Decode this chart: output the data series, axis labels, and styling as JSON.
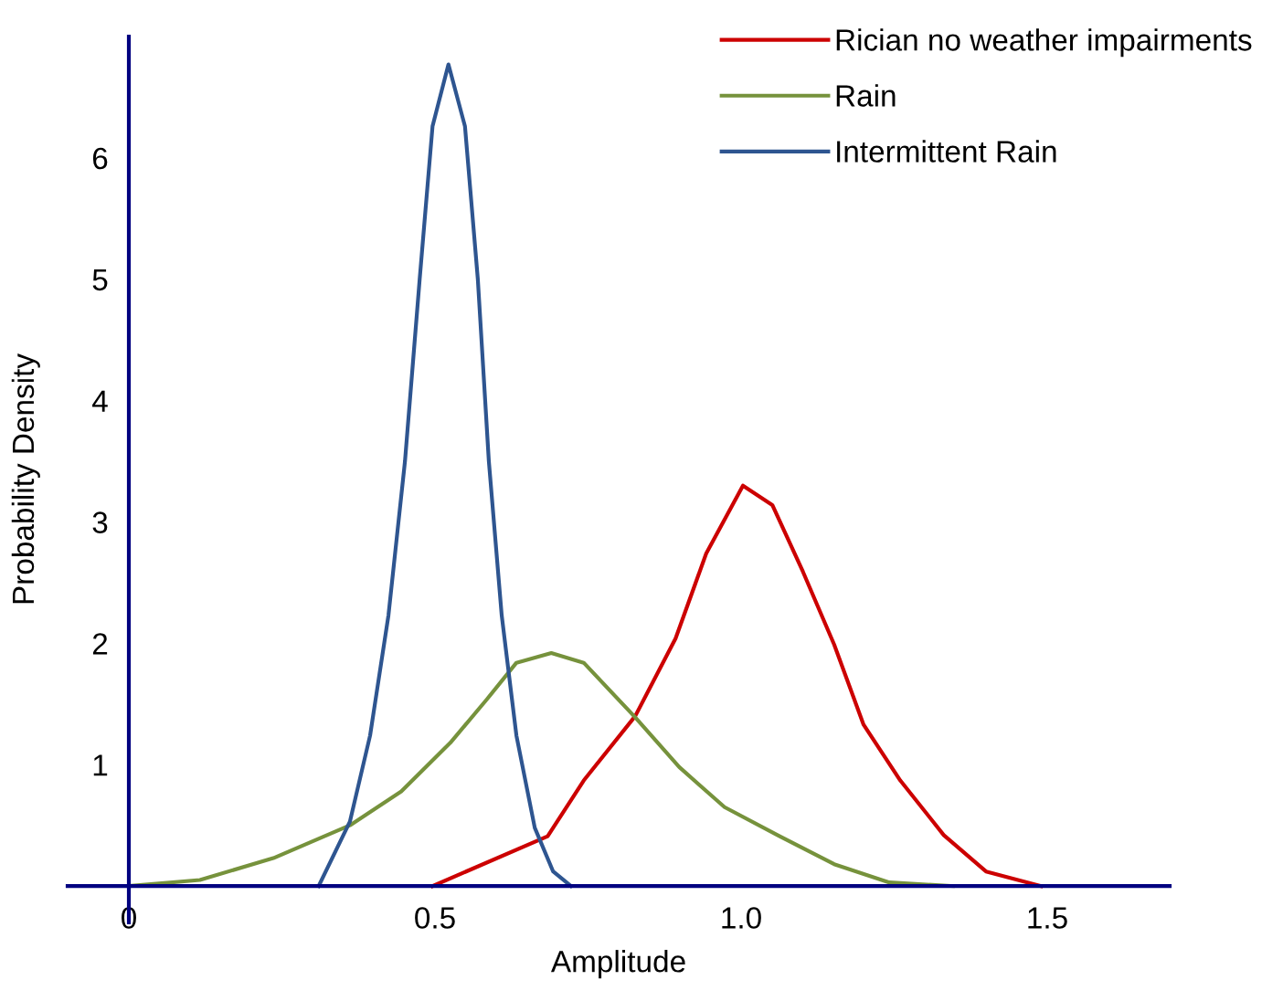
{
  "chart_data": {
    "type": "line",
    "xlabel": "Amplitude",
    "ylabel": "Probability Density",
    "xlim": [
      -0.1,
      1.7
    ],
    "ylim": [
      -0.3,
      7.0
    ],
    "xticks": [
      0,
      0.5,
      {
        "value": 1.0,
        "label": "1.0"
      },
      1.5
    ],
    "yticks": [
      1,
      2,
      3,
      4,
      5,
      6
    ],
    "grid": false,
    "legend": "top right",
    "marker": "none",
    "line_style": "solid",
    "series": [
      {
        "name": "Rician no weather impairments",
        "color": "#cc0000",
        "x": [
          0.496,
          0.684,
          0.743,
          0.827,
          0.893,
          0.943,
          1.003,
          1.051,
          1.101,
          1.152,
          1.2,
          1.26,
          1.331,
          1.4,
          1.49
        ],
        "values": [
          0,
          0.41,
          0.87,
          1.4,
          2.04,
          2.74,
          3.3,
          3.14,
          2.59,
          1.99,
          1.33,
          0.87,
          0.42,
          0.12,
          0
        ]
      },
      {
        "name": "Rain",
        "color": "#76923c",
        "x": [
          0,
          0.116,
          0.236,
          0.361,
          0.445,
          0.525,
          0.585,
          0.633,
          0.69,
          0.743,
          0.827,
          0.899,
          0.973,
          1.063,
          1.152,
          1.242,
          1.346
        ],
        "values": [
          0,
          0.05,
          0.23,
          0.5,
          0.78,
          1.18,
          1.54,
          1.84,
          1.92,
          1.84,
          1.39,
          0.98,
          0.65,
          0.41,
          0.18,
          0.03,
          0
        ]
      },
      {
        "name": "Intermittent Rain",
        "color": "#2e5590",
        "x": [
          0.31,
          0.361,
          0.394,
          0.424,
          0.451,
          0.475,
          0.496,
          0.522,
          0.549,
          0.57,
          0.588,
          0.609,
          0.633,
          0.663,
          0.693,
          0.722
        ],
        "values": [
          0,
          0.53,
          1.24,
          2.23,
          3.5,
          5.0,
          6.26,
          6.77,
          6.26,
          5.0,
          3.5,
          2.23,
          1.24,
          0.48,
          0.12,
          0
        ]
      }
    ]
  }
}
